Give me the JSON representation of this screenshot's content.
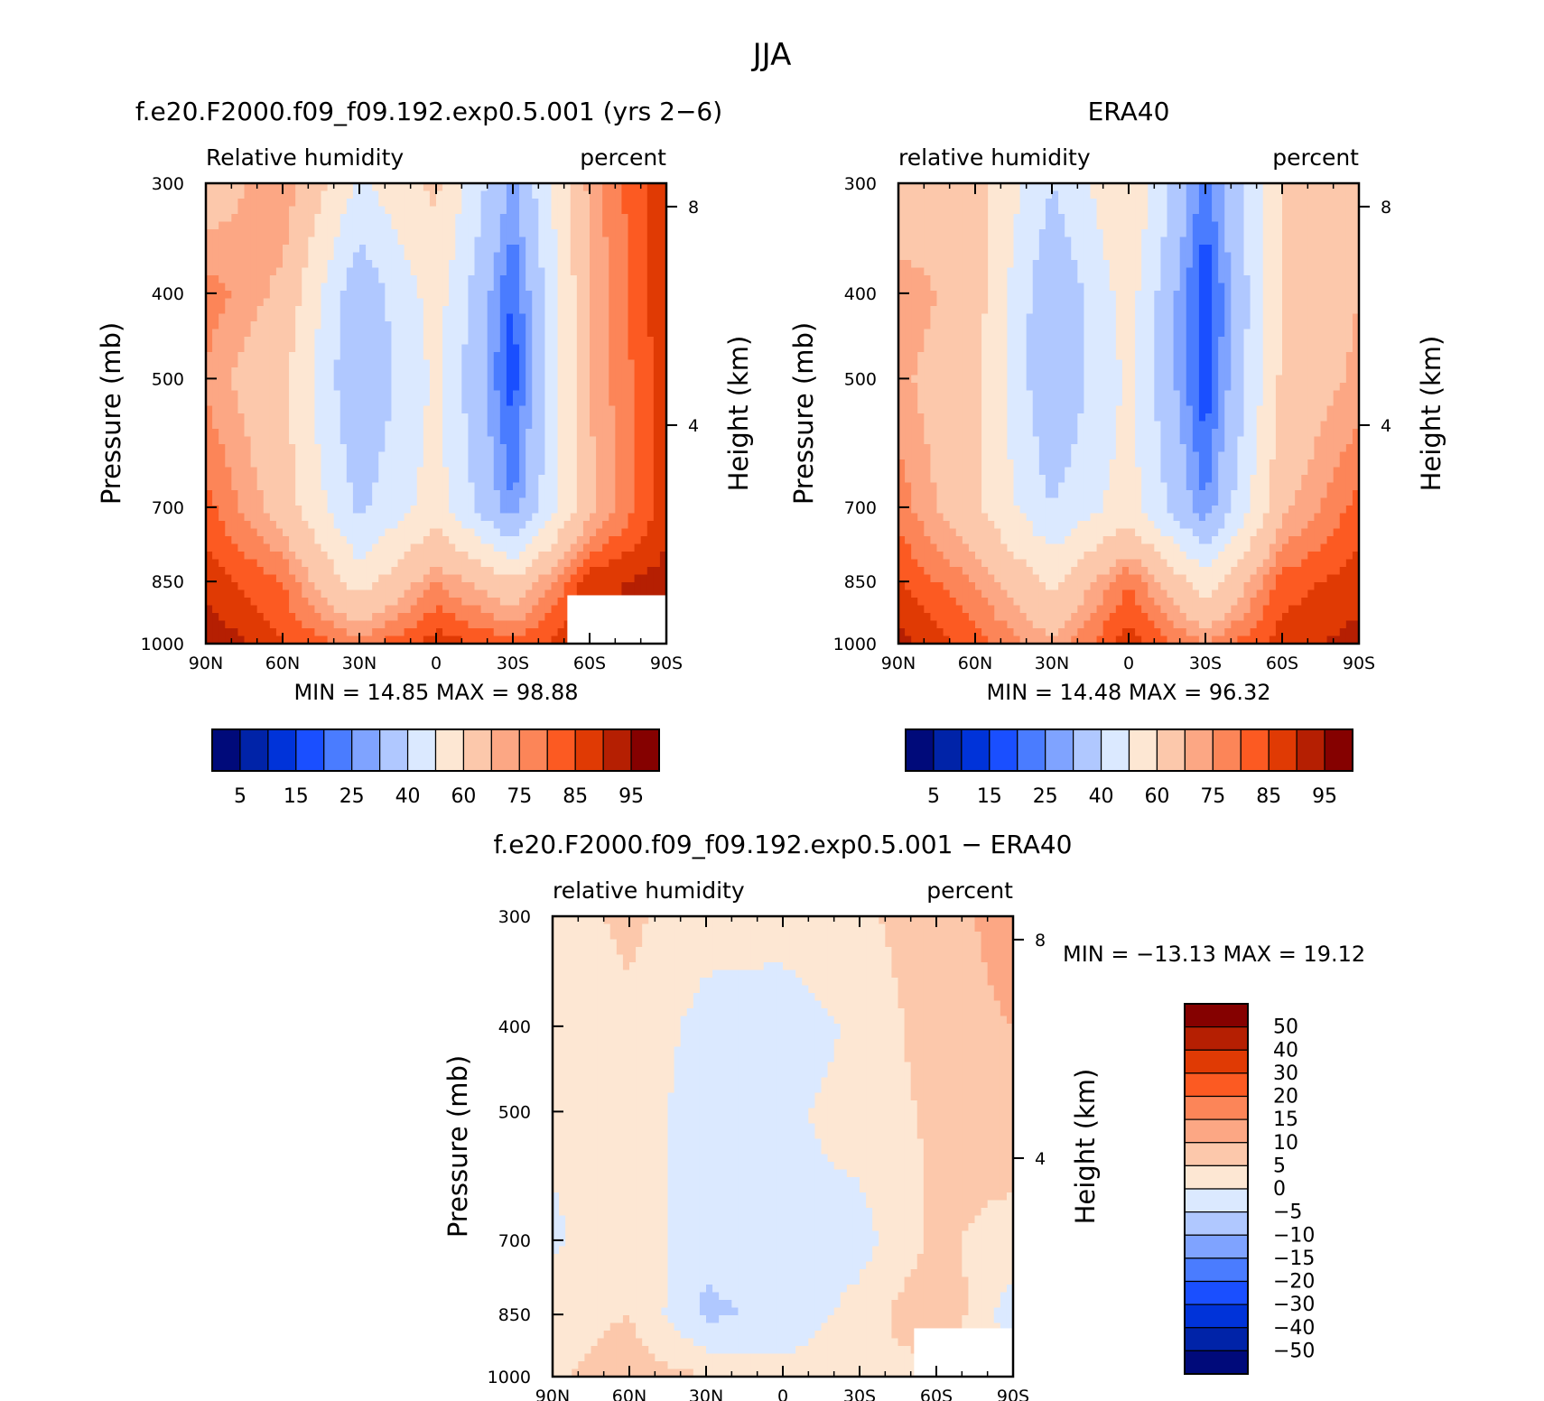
{
  "figure_title": "JJA",
  "colors": {
    "rh_scale": [
      "#000a7a",
      "#0023a8",
      "#0033d9",
      "#1a4fff",
      "#4a7cff",
      "#7fa3ff",
      "#b0c8ff",
      "#dbe9ff",
      "#fde7d3",
      "#fcc8ab",
      "#fca784",
      "#fc8558",
      "#fc5a22",
      "#e03a04",
      "#b51f02",
      "#850100"
    ],
    "diff_scale": [
      "#000a7a",
      "#0023a8",
      "#0033d9",
      "#1a4fff",
      "#4a7cff",
      "#7fa3ff",
      "#b0c8ff",
      "#dbe9ff",
      "#fde7d3",
      "#fcc8ab",
      "#fca784",
      "#fc8558",
      "#fc5a22",
      "#e03a04",
      "#b51f02",
      "#850100"
    ]
  },
  "panels": [
    {
      "title": "f.e20.F2000.f09_f09.192.exp0.5.001 (yrs 2−6)",
      "left_label": "Relative humidity",
      "right_label": "percent",
      "y_axis_label": "Pressure (mb)",
      "y2_axis_label": "Height (km)",
      "stats": "MIN = 14.85 MAX = 98.88",
      "x_ticks": [
        "90N",
        "60N",
        "30N",
        "0",
        "30S",
        "60S",
        "90S"
      ],
      "y_ticks": [
        "300",
        "400",
        "500",
        "700",
        "850",
        "1000"
      ],
      "y2_ticks": [
        "8",
        "4"
      ]
    },
    {
      "title": "ERA40",
      "left_label": "relative humidity",
      "right_label": "percent",
      "y_axis_label": "Pressure (mb)",
      "y2_axis_label": "Height (km)",
      "stats": "MIN = 14.48 MAX = 96.32",
      "x_ticks": [
        "90N",
        "60N",
        "30N",
        "0",
        "30S",
        "60S",
        "90S"
      ],
      "y_ticks": [
        "300",
        "400",
        "500",
        "700",
        "850",
        "1000"
      ],
      "y2_ticks": [
        "8",
        "4"
      ]
    },
    {
      "title": "f.e20.F2000.f09_f09.192.exp0.5.001 − ERA40",
      "left_label": "relative humidity",
      "right_label": "percent",
      "y_axis_label": "Pressure (mb)",
      "y2_axis_label": "Height (km)",
      "stats": "MIN = −13.13 MAX = 19.12",
      "x_ticks": [
        "90N",
        "60N",
        "30N",
        "0",
        "30S",
        "60S",
        "90S"
      ],
      "y_ticks": [
        "300",
        "400",
        "500",
        "700",
        "850",
        "1000"
      ],
      "y2_ticks": [
        "8",
        "4"
      ]
    }
  ],
  "colorbars": {
    "rh_labels": [
      "5",
      "15",
      "25",
      "40",
      "60",
      "75",
      "85",
      "95"
    ],
    "diff_labels": [
      "50",
      "40",
      "30",
      "20",
      "15",
      "10",
      "5",
      "0",
      "−5",
      "−10",
      "−15",
      "−20",
      "−30",
      "−40",
      "−50"
    ]
  },
  "chart_data": [
    {
      "type": "heatmap",
      "title": "f.e20.F2000.f09_f09.192.exp0.5.001 (yrs 2−6)",
      "xlabel": "",
      "ylabel": "Pressure (mb)",
      "x": [
        -90,
        -60,
        -30,
        0,
        30,
        60,
        90
      ],
      "x_tick_labels": [
        "90N",
        "60N",
        "30N",
        "0",
        "30S",
        "60S",
        "90S"
      ],
      "y": [
        300,
        400,
        500,
        700,
        850,
        1000
      ],
      "levels": [
        5,
        10,
        15,
        20,
        25,
        30,
        40,
        50,
        60,
        70,
        75,
        80,
        85,
        90,
        95
      ],
      "min": 14.85,
      "max": 98.88,
      "z": [
        [
          65,
          75,
          48,
          62,
          28,
          72,
          90
        ],
        [
          78,
          68,
          32,
          55,
          19,
          70,
          90
        ],
        [
          74,
          62,
          30,
          52,
          17,
          70,
          88
        ],
        [
          82,
          66,
          38,
          55,
          25,
          68,
          88
        ],
        [
          88,
          80,
          55,
          75,
          62,
          88,
          92
        ],
        [
          95,
          85,
          78,
          88,
          82,
          90,
          95
        ]
      ]
    },
    {
      "type": "heatmap",
      "title": "ERA40",
      "xlabel": "",
      "ylabel": "Pressure (mb)",
      "x": [
        -90,
        -60,
        -30,
        0,
        30,
        60,
        90
      ],
      "x_tick_labels": [
        "90N",
        "60N",
        "30N",
        "0",
        "30S",
        "60S",
        "90S"
      ],
      "y": [
        300,
        400,
        500,
        700,
        850,
        1000
      ],
      "levels": [
        5,
        10,
        15,
        20,
        25,
        30,
        40,
        50,
        60,
        70,
        75,
        80,
        85,
        90,
        95
      ],
      "min": 14.48,
      "max": 96.32,
      "z": [
        [
          62,
          65,
          40,
          60,
          22,
          60,
          70
        ],
        [
          75,
          65,
          30,
          55,
          15,
          60,
          70
        ],
        [
          72,
          62,
          30,
          52,
          16,
          62,
          72
        ],
        [
          78,
          62,
          40,
          55,
          25,
          68,
          82
        ],
        [
          85,
          75,
          58,
          80,
          55,
          82,
          88
        ],
        [
          92,
          82,
          72,
          88,
          75,
          88,
          92
        ]
      ]
    },
    {
      "type": "heatmap",
      "title": "f.e20.F2000.f09_f09.192.exp0.5.001 − ERA40",
      "xlabel": "",
      "ylabel": "Pressure (mb)",
      "x": [
        -90,
        -60,
        -30,
        0,
        30,
        60,
        90
      ],
      "x_tick_labels": [
        "90N",
        "60N",
        "30N",
        "0",
        "30S",
        "60S",
        "90S"
      ],
      "y": [
        300,
        400,
        500,
        700,
        850,
        1000
      ],
      "levels": [
        -50,
        -40,
        -30,
        -20,
        -15,
        -10,
        -5,
        0,
        5,
        10,
        15,
        20,
        30,
        40,
        50
      ],
      "min": -13.13,
      "max": 19.12,
      "z": [
        [
          3,
          6,
          2,
          2,
          4,
          8,
          12
        ],
        [
          2,
          4,
          -2,
          -3,
          1,
          8,
          10
        ],
        [
          1,
          3,
          -3,
          -1,
          2,
          6,
          8
        ],
        [
          -1,
          4,
          -4,
          -1,
          -2,
          6,
          3
        ],
        [
          3,
          5,
          -6,
          -4,
          2,
          10,
          -3
        ],
        [
          4,
          8,
          5,
          2,
          5,
          2,
          3
        ]
      ]
    }
  ]
}
